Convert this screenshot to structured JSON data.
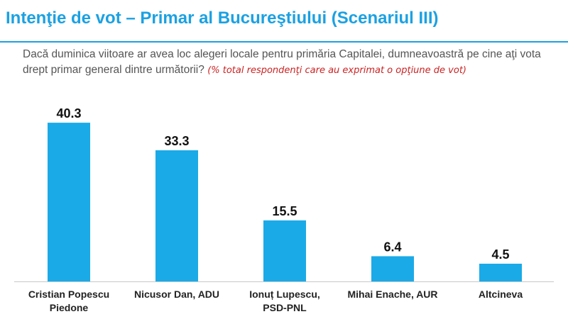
{
  "header": {
    "title": "Intenţie de vot – Primar al Bucureştiului (Scenariul III)"
  },
  "question": {
    "text": "Dacă duminica viitoare ar avea loc alegeri locale pentru primăria Capitalei,  dumneavoastră pe cine aţi vota drept primar general dintre următorii?",
    "note": "(% total respondenţi care au exprimat o opţiune de vot)"
  },
  "colors": {
    "accent": "#1ba1e2",
    "bar": "#1aaae8",
    "note": "#cc2222"
  },
  "chart_data": {
    "type": "bar",
    "categories": [
      [
        "Cristian Popescu",
        "Piedone"
      ],
      [
        "Nicusor Dan, ADU"
      ],
      [
        "Ionuț Lupescu,",
        "PSD-PNL"
      ],
      [
        "Mihai Enache, AUR"
      ],
      [
        "Altcineva"
      ]
    ],
    "values": [
      40.3,
      33.3,
      15.5,
      6.4,
      4.5
    ],
    "value_labels": [
      "40.3",
      "33.3",
      "15.5",
      "6.4",
      "4.5"
    ],
    "ylim": [
      0,
      45
    ],
    "grid": false,
    "legend": "none"
  }
}
